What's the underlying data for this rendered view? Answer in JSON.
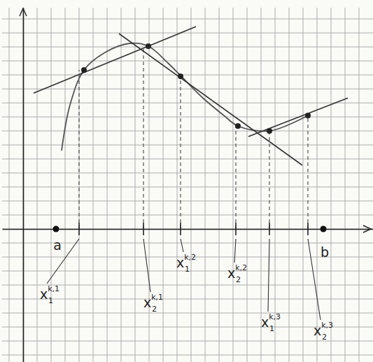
{
  "chart_data": {
    "type": "line",
    "xlim": [
      -1.5,
      25
    ],
    "ylim": [
      -9.5,
      15.8
    ],
    "xticks": [
      -1,
      0,
      1,
      2,
      3,
      4,
      5,
      6,
      7,
      8,
      9,
      10,
      11,
      12,
      13,
      14,
      15,
      16,
      17,
      18,
      19,
      20,
      21,
      22,
      23,
      24
    ],
    "yticks": [
      -9,
      -8,
      -7,
      -6,
      -5,
      -4,
      -3,
      -2,
      -1,
      0,
      1,
      2,
      3,
      4,
      5,
      6,
      7,
      8,
      9,
      10,
      11,
      12,
      13,
      14,
      15
    ],
    "grid": true,
    "tick_labels": false,
    "series": [
      {
        "color": "#555555",
        "line_style": "solid",
        "x": [
          2.75,
          3.35,
          4.35,
          5.85,
          7.6,
          8.95,
          10.35,
          11.35,
          12.85,
          14.35,
          15.35,
          17.6,
          20.35
        ],
        "values": [
          5.6,
          8.85,
          11.35,
          12.6,
          13.25,
          13.05,
          11.85,
          10.85,
          9.35,
          8.1,
          7.35,
          7.0,
          8.1
        ]
      }
    ],
    "tangents": [
      {
        "color": "#333333",
        "x": [
          0.75,
          12.35
        ],
        "values": [
          9.7,
          14.45
        ]
      },
      {
        "color": "#333333",
        "x": [
          6.85,
          19.95
        ],
        "values": [
          13.95,
          4.55
        ]
      },
      {
        "color": "#333333",
        "x": [
          16.1,
          23.2
        ],
        "values": [
          6.6,
          9.35
        ]
      }
    ],
    "points": {
      "marker": "circle",
      "color": "#222222",
      "x": [
        4.35,
        8.95,
        11.25,
        15.35,
        17.6,
        20.35
      ],
      "values": [
        11.35,
        13.05,
        10.9,
        7.35,
        7.0,
        8.1
      ]
    },
    "annotations": [
      {
        "text": "x",
        "sub": "1",
        "sup": "k,1",
        "x": 4.0
      },
      {
        "text": "x",
        "sub": "2",
        "sup": "k,1",
        "x": 8.6
      },
      {
        "text": "x",
        "sub": "1",
        "sup": "k,2",
        "x": 11.25
      },
      {
        "text": "x",
        "sub": "2",
        "sup": "k,2",
        "x": 15.2
      },
      {
        "text": "x",
        "sub": "1",
        "sup": "k,3",
        "x": 17.6
      },
      {
        "text": "x",
        "sub": "2",
        "sup": "k,3",
        "x": 20.35
      }
    ],
    "endpoints": [
      {
        "text": "a",
        "x": 2.35
      },
      {
        "text": "b",
        "x": 21.45
      }
    ]
  }
}
